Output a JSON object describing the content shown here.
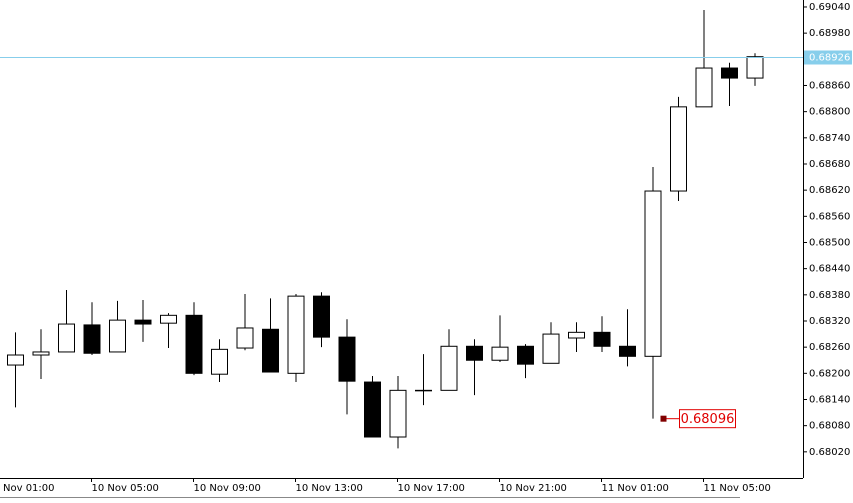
{
  "chart_data": {
    "type": "candlestick",
    "categories": [
      "Nov 01:00",
      null,
      null,
      null,
      "10 Nov 05:00",
      null,
      null,
      null,
      "10 Nov 09:00",
      null,
      null,
      null,
      "10 Nov 13:00",
      null,
      null,
      null,
      "10 Nov 17:00",
      null,
      null,
      null,
      "10 Nov 21:00",
      null,
      null,
      null,
      "11 Nov 01:00",
      null,
      null,
      null,
      "11 Nov 05:00",
      null,
      null
    ],
    "series": [
      {
        "up_color": "#ffffff",
        "down_color": "#000000",
        "open": [
          null,
          0.68219,
          0.68242,
          0.68249,
          0.68311,
          0.68249,
          0.68322,
          0.68315,
          0.68333,
          0.68198,
          0.68258,
          0.68301,
          0.682,
          0.68377,
          0.68283,
          0.6818,
          0.68054,
          0.68161,
          0.68161,
          0.68262,
          0.6823,
          0.68262,
          0.68223,
          0.68281,
          0.68294,
          0.68262,
          0.68239,
          0.68618,
          0.68811,
          0.689,
          0.68877
        ],
        "high": [
          null,
          0.68294,
          0.68301,
          0.68391,
          0.68363,
          0.68366,
          0.68368,
          0.68338,
          0.68363,
          0.68278,
          0.68382,
          0.68372,
          0.68382,
          0.68386,
          0.68324,
          0.68194,
          0.68194,
          0.68244,
          0.68301,
          0.68278,
          0.68333,
          0.68267,
          0.68317,
          0.68317,
          0.68331,
          0.68347,
          0.68673,
          0.68834,
          0.69033,
          0.68912,
          0.68934
        ],
        "low": [
          null,
          0.68122,
          0.68187,
          0.68249,
          0.68242,
          0.68249,
          0.68272,
          0.68258,
          0.68196,
          0.6818,
          0.68253,
          0.68203,
          0.6818,
          0.6826,
          0.68106,
          0.68054,
          0.68028,
          0.68127,
          0.68161,
          0.6815,
          0.68226,
          0.68189,
          0.68223,
          0.68249,
          0.68249,
          0.68216,
          0.68096,
          0.68595,
          0.68811,
          0.68813,
          0.68859
        ],
        "close": [
          null,
          0.68242,
          0.68249,
          0.68313,
          0.68246,
          0.68322,
          0.68313,
          0.68333,
          0.682,
          0.68255,
          0.68304,
          0.68203,
          0.68377,
          0.68283,
          0.68182,
          0.68054,
          0.68161,
          0.68161,
          0.68262,
          0.6823,
          0.6826,
          0.68221,
          0.6829,
          0.68294,
          0.68262,
          0.68239,
          0.68618,
          0.68811,
          0.689,
          0.68877,
          0.68926
        ]
      }
    ],
    "ylim": [
      0.6796,
      0.69056
    ],
    "yticks": [
      {
        "value": 0.6904,
        "label": "0.69040"
      },
      {
        "value": 0.6898,
        "label": "0.68980"
      },
      {
        "value": 0.6886,
        "label": "0.68860"
      },
      {
        "value": 0.688,
        "label": "0.68800"
      },
      {
        "value": 0.6874,
        "label": "0.68740"
      },
      {
        "value": 0.6868,
        "label": "0.68680"
      },
      {
        "value": 0.6862,
        "label": "0.68620"
      },
      {
        "value": 0.6856,
        "label": "0.68560"
      },
      {
        "value": 0.685,
        "label": "0.68500"
      },
      {
        "value": 0.6844,
        "label": "0.68440"
      },
      {
        "value": 0.6838,
        "label": "0.68380"
      },
      {
        "value": 0.6832,
        "label": "0.68320"
      },
      {
        "value": 0.6826,
        "label": "0.68260"
      },
      {
        "value": 0.682,
        "label": "0.68200"
      },
      {
        "value": 0.6814,
        "label": "0.68140"
      },
      {
        "value": 0.6808,
        "label": "0.68080"
      },
      {
        "value": 0.6802,
        "label": "0.68020"
      }
    ],
    "current_price": {
      "value": 0.68926,
      "label": "0.68926",
      "color": "#87ceeb"
    },
    "annotation": {
      "value": 0.68096,
      "label": "0.68096",
      "color": "#e00000"
    }
  }
}
